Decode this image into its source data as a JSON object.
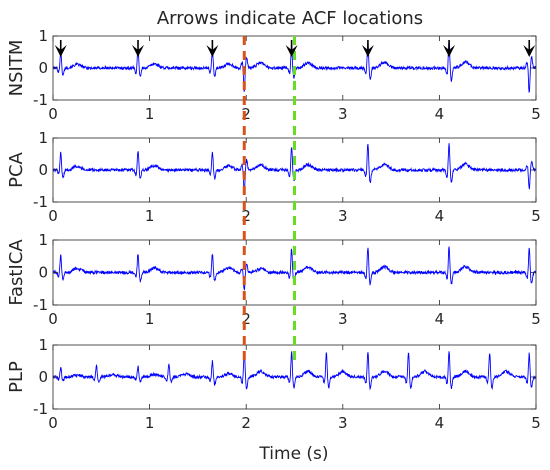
{
  "chart_data": {
    "type": "line",
    "title": "Arrows indicate ACF locations",
    "xlabel": "Time (s)",
    "xlim": [
      0,
      5
    ],
    "ylim": [
      -1,
      1
    ],
    "xticks": [
      "0",
      "1",
      "2",
      "3",
      "4",
      "5"
    ],
    "yticks": [
      "1",
      "0",
      "-1"
    ],
    "grid": false,
    "line_color": "#0000ff",
    "panels": [
      {
        "ylabel": "NSITM",
        "beats": [
          {
            "t": 0.08,
            "amp": 0.5
          },
          {
            "t": 0.88,
            "amp": 0.6
          },
          {
            "t": 1.65,
            "amp": 0.6
          },
          {
            "t": 1.98,
            "amp": -0.75
          },
          {
            "t": 2.47,
            "amp": 0.72
          },
          {
            "t": 3.26,
            "amp": 0.8
          },
          {
            "t": 4.1,
            "amp": 0.85
          },
          {
            "t": 4.93,
            "amp": -0.8
          }
        ]
      },
      {
        "ylabel": "PCA",
        "beats": [
          {
            "t": 0.08,
            "amp": 0.55
          },
          {
            "t": 0.88,
            "amp": 0.6
          },
          {
            "t": 1.65,
            "amp": 0.6
          },
          {
            "t": 1.98,
            "amp": -0.7
          },
          {
            "t": 2.47,
            "amp": 0.75
          },
          {
            "t": 3.26,
            "amp": 0.85
          },
          {
            "t": 4.1,
            "amp": 0.85
          },
          {
            "t": 4.93,
            "amp": -0.6
          }
        ]
      },
      {
        "ylabel": "FastICA",
        "beats": [
          {
            "t": 0.08,
            "amp": 0.55
          },
          {
            "t": 0.88,
            "amp": 0.6
          },
          {
            "t": 1.65,
            "amp": 0.6
          },
          {
            "t": 1.98,
            "amp": -0.55
          },
          {
            "t": 2.47,
            "amp": 0.75
          },
          {
            "t": 3.26,
            "amp": 0.8
          },
          {
            "t": 4.1,
            "amp": 0.8
          },
          {
            "t": 4.93,
            "amp": 0.75
          }
        ]
      },
      {
        "ylabel": "PLP",
        "beats": [
          {
            "t": 0.08,
            "amp": 0.3
          },
          {
            "t": 0.45,
            "amp": 0.35
          },
          {
            "t": 0.88,
            "amp": 0.35
          },
          {
            "t": 1.2,
            "amp": 0.4
          },
          {
            "t": 1.65,
            "amp": 0.5
          },
          {
            "t": 1.98,
            "amp": 0.8
          },
          {
            "t": 2.47,
            "amp": 0.8
          },
          {
            "t": 2.83,
            "amp": 0.75
          },
          {
            "t": 3.26,
            "amp": 0.8
          },
          {
            "t": 3.68,
            "amp": 0.8
          },
          {
            "t": 4.1,
            "amp": 0.8
          },
          {
            "t": 4.52,
            "amp": 0.8
          },
          {
            "t": 4.93,
            "amp": 0.75
          }
        ]
      }
    ],
    "arrows": {
      "panel": "NSITM",
      "x": [
        0.08,
        0.88,
        1.65,
        2.47,
        3.26,
        4.1,
        4.93
      ],
      "color": "#000000"
    },
    "markers": [
      {
        "x": 1.98,
        "color": "#d95319",
        "style": "dashed"
      },
      {
        "x": 2.5,
        "color": "#66dd22",
        "style": "dashed"
      }
    ]
  }
}
